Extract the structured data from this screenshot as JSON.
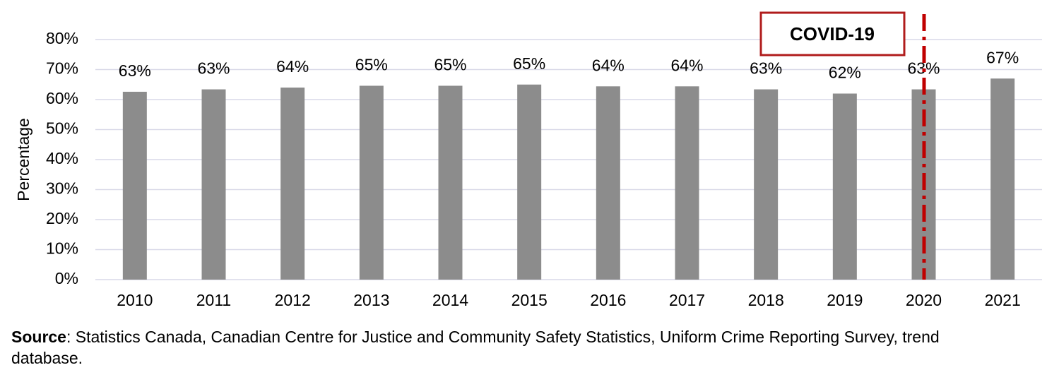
{
  "chart_data": {
    "type": "bar",
    "y_label": "Percentage",
    "categories": [
      "2010",
      "2011",
      "2012",
      "2013",
      "2014",
      "2015",
      "2016",
      "2017",
      "2018",
      "2019",
      "2020",
      "2021"
    ],
    "values": [
      62.6,
      63.4,
      64,
      64.6,
      64.6,
      65,
      64.4,
      64.4,
      63.4,
      62,
      63.4,
      67
    ],
    "value_labels": [
      "63%",
      "63%",
      "64%",
      "65%",
      "65%",
      "65%",
      "64%",
      "64%",
      "63%",
      "62%",
      "63%",
      "67%"
    ],
    "color": "#8c8c8c",
    "ylim": [
      0,
      80
    ],
    "yticks": [
      {
        "value": 0,
        "label": "0%"
      },
      {
        "value": 10,
        "label": "10%"
      },
      {
        "value": 20,
        "label": "20%"
      },
      {
        "value": 30,
        "label": "30%"
      },
      {
        "value": 40,
        "label": "40%"
      },
      {
        "value": 50,
        "label": "50%"
      },
      {
        "value": 60,
        "label": "60%"
      },
      {
        "value": 70,
        "label": "70%"
      },
      {
        "value": 80,
        "label": "80%"
      }
    ],
    "grid": true,
    "annotation": "COVID-19",
    "source_label": "Source",
    "source_text": ": Statistics Canada, Canadian Centre for Justice and Community Safety Statistics, Uniform Crime Reporting Survey, trend database."
  }
}
